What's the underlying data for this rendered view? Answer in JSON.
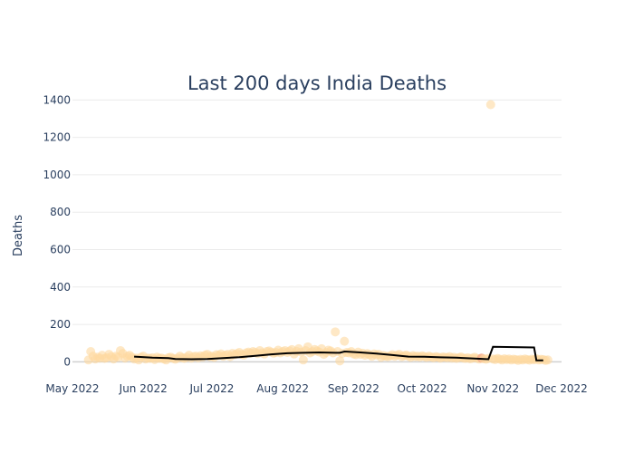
{
  "chart_data": {
    "type": "scatter",
    "title": "Last 200 days India Deaths",
    "xlabel": "",
    "ylabel": "Deaths",
    "x_range": [
      "2022-05-01",
      "2022-12-01"
    ],
    "y_range": [
      -100,
      1450
    ],
    "x_tick_dates": [
      "2022-05-01",
      "2022-06-01",
      "2022-07-01",
      "2022-08-01",
      "2022-09-01",
      "2022-10-01",
      "2022-11-01",
      "2022-12-01"
    ],
    "x_tick_labels": [
      "May 2022",
      "Jun 2022",
      "Jul 2022",
      "Aug 2022",
      "Sep 2022",
      "Oct 2022",
      "Nov 2022",
      "Dec 2022"
    ],
    "y_ticks": [
      0,
      200,
      400,
      600,
      800,
      1000,
      1200,
      1400
    ],
    "grid": true,
    "legend": "none",
    "colors": {
      "points": "#fdd9a0",
      "outlier": "#f4a98a",
      "trend": "#000000",
      "grid": "#ebebeb",
      "zero": "#d0d0d0"
    },
    "series": [
      {
        "kind": "points",
        "x": [
          "2022-05-08",
          "2022-05-09",
          "2022-05-10",
          "2022-05-11",
          "2022-05-12",
          "2022-05-13",
          "2022-05-14",
          "2022-05-15",
          "2022-05-16",
          "2022-05-17",
          "2022-05-18",
          "2022-05-19",
          "2022-05-20",
          "2022-05-21",
          "2022-05-22",
          "2022-05-23",
          "2022-05-24",
          "2022-05-25",
          "2022-05-26",
          "2022-05-27",
          "2022-05-28",
          "2022-05-29",
          "2022-05-30",
          "2022-05-31",
          "2022-06-01",
          "2022-06-02",
          "2022-06-03",
          "2022-06-04",
          "2022-06-05",
          "2022-06-06",
          "2022-06-07",
          "2022-06-08",
          "2022-06-09",
          "2022-06-10",
          "2022-06-11",
          "2022-06-12",
          "2022-06-13",
          "2022-06-14",
          "2022-06-15",
          "2022-06-16",
          "2022-06-17",
          "2022-06-18",
          "2022-06-19",
          "2022-06-20",
          "2022-06-21",
          "2022-06-22",
          "2022-06-23",
          "2022-06-24",
          "2022-06-25",
          "2022-06-26",
          "2022-06-27",
          "2022-06-28",
          "2022-06-29",
          "2022-06-30",
          "2022-07-01",
          "2022-07-02",
          "2022-07-03",
          "2022-07-04",
          "2022-07-05",
          "2022-07-06",
          "2022-07-07",
          "2022-07-08",
          "2022-07-09",
          "2022-07-10",
          "2022-07-11",
          "2022-07-12",
          "2022-07-13",
          "2022-07-14",
          "2022-07-15",
          "2022-07-16",
          "2022-07-17",
          "2022-07-18",
          "2022-07-19",
          "2022-07-20",
          "2022-07-21",
          "2022-07-22",
          "2022-07-23",
          "2022-07-24",
          "2022-07-25",
          "2022-07-26",
          "2022-07-27",
          "2022-07-28",
          "2022-07-29",
          "2022-07-30",
          "2022-07-31",
          "2022-08-01",
          "2022-08-02",
          "2022-08-03",
          "2022-08-04",
          "2022-08-05",
          "2022-08-06",
          "2022-08-07",
          "2022-08-08",
          "2022-08-09",
          "2022-08-10",
          "2022-08-11",
          "2022-08-12",
          "2022-08-13",
          "2022-08-14",
          "2022-08-15",
          "2022-08-16",
          "2022-08-17",
          "2022-08-18",
          "2022-08-19",
          "2022-08-20",
          "2022-08-21",
          "2022-08-22",
          "2022-08-23",
          "2022-08-24",
          "2022-08-25",
          "2022-08-26",
          "2022-08-27",
          "2022-08-28",
          "2022-08-29",
          "2022-08-30",
          "2022-08-31",
          "2022-09-01",
          "2022-09-02",
          "2022-09-03",
          "2022-09-04",
          "2022-09-05",
          "2022-09-06",
          "2022-09-07",
          "2022-09-08",
          "2022-09-09",
          "2022-09-10",
          "2022-09-11",
          "2022-09-12",
          "2022-09-13",
          "2022-09-14",
          "2022-09-15",
          "2022-09-16",
          "2022-09-17",
          "2022-09-18",
          "2022-09-19",
          "2022-09-20",
          "2022-09-21",
          "2022-09-22",
          "2022-09-23",
          "2022-09-24",
          "2022-09-25",
          "2022-09-26",
          "2022-09-27",
          "2022-09-28",
          "2022-09-29",
          "2022-09-30",
          "2022-10-01",
          "2022-10-02",
          "2022-10-03",
          "2022-10-04",
          "2022-10-05",
          "2022-10-06",
          "2022-10-07",
          "2022-10-08",
          "2022-10-09",
          "2022-10-10",
          "2022-10-11",
          "2022-10-12",
          "2022-10-13",
          "2022-10-14",
          "2022-10-15",
          "2022-10-16",
          "2022-10-17",
          "2022-10-18",
          "2022-10-19",
          "2022-10-20",
          "2022-10-21",
          "2022-10-22",
          "2022-10-23",
          "2022-10-24",
          "2022-10-25",
          "2022-10-26",
          "2022-10-27",
          "2022-10-28",
          "2022-10-29",
          "2022-10-30",
          "2022-10-31",
          "2022-11-01",
          "2022-11-02",
          "2022-11-03",
          "2022-11-04",
          "2022-11-05",
          "2022-11-06",
          "2022-11-07",
          "2022-11-08",
          "2022-11-09",
          "2022-11-10",
          "2022-11-11",
          "2022-11-12",
          "2022-11-13",
          "2022-11-14",
          "2022-11-15",
          "2022-11-16",
          "2022-11-17",
          "2022-11-18",
          "2022-11-19",
          "2022-11-20",
          "2022-11-21",
          "2022-11-22",
          "2022-11-23",
          "2022-11-24",
          "2022-11-25"
        ],
        "y": [
          10,
          55,
          30,
          15,
          25,
          20,
          35,
          18,
          22,
          40,
          28,
          15,
          30,
          25,
          60,
          45,
          20,
          30,
          35,
          25,
          15,
          20,
          10,
          25,
          30,
          15,
          20,
          18,
          22,
          12,
          25,
          18,
          20,
          15,
          10,
          22,
          25,
          18,
          14,
          20,
          30,
          22,
          18,
          25,
          35,
          20,
          28,
          30,
          22,
          32,
          26,
          35,
          40,
          28,
          30,
          24,
          38,
          34,
          42,
          30,
          36,
          40,
          28,
          45,
          38,
          44,
          50,
          40,
          36,
          48,
          52,
          46,
          55,
          50,
          44,
          60,
          48,
          42,
          55,
          58,
          52,
          46,
          50,
          62,
          48,
          55,
          60,
          50,
          58,
          65,
          42,
          56,
          70,
          52,
          10,
          60,
          80,
          48,
          55,
          66,
          58,
          52,
          70,
          40,
          50,
          62,
          58,
          48,
          160,
          55,
          5,
          45,
          110,
          50,
          48,
          55,
          42,
          38,
          52,
          40,
          46,
          35,
          44,
          38,
          30,
          42,
          36,
          40,
          25,
          34,
          30,
          28,
          32,
          38,
          30,
          35,
          40,
          28,
          32,
          36,
          30,
          25,
          33,
          28,
          30,
          26,
          32,
          28,
          24,
          30,
          26,
          22,
          28,
          25,
          20,
          26,
          24,
          22,
          28,
          20,
          24,
          18,
          22,
          26,
          20,
          18,
          22,
          16,
          20,
          24,
          18,
          15,
          20,
          16,
          14,
          18,
          1375,
          15,
          12,
          18,
          14,
          10,
          16,
          12,
          15,
          10,
          14,
          12,
          8,
          13,
          10,
          15,
          12,
          9,
          14,
          11,
          16,
          10,
          13,
          12,
          8,
          10
        ],
        "outlier_indices": [
          172
        ]
      },
      {
        "kind": "line",
        "x": [
          "2022-05-28",
          "2022-06-05",
          "2022-06-12",
          "2022-06-15",
          "2022-06-22",
          "2022-06-29",
          "2022-07-06",
          "2022-07-13",
          "2022-07-20",
          "2022-07-27",
          "2022-08-03",
          "2022-08-10",
          "2022-08-17",
          "2022-08-24",
          "2022-08-26",
          "2022-08-28",
          "2022-09-04",
          "2022-09-11",
          "2022-09-18",
          "2022-09-25",
          "2022-10-02",
          "2022-10-09",
          "2022-10-16",
          "2022-10-23",
          "2022-10-30",
          "2022-11-01",
          "2022-11-19",
          "2022-11-20",
          "2022-11-23"
        ],
        "y": [
          28,
          22,
          20,
          15,
          14,
          15,
          20,
          25,
          32,
          40,
          46,
          48,
          50,
          48,
          48,
          55,
          50,
          44,
          36,
          28,
          27,
          24,
          22,
          18,
          14,
          80,
          77,
          8,
          8
        ]
      }
    ]
  }
}
